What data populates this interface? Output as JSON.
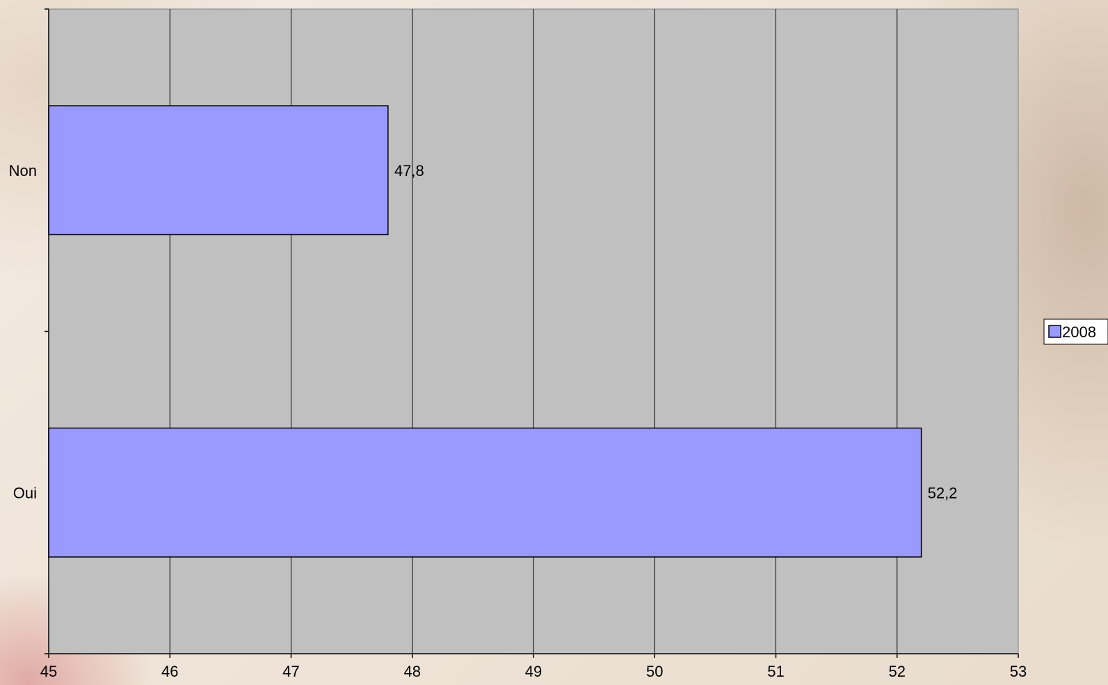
{
  "chart_data": {
    "type": "bar",
    "orientation": "horizontal",
    "categories": [
      "Non",
      "Oui"
    ],
    "series": [
      {
        "name": "2008",
        "values": [
          47.8,
          52.2
        ],
        "color": "#9999ff"
      }
    ],
    "data_labels": [
      "47,8",
      "52,2"
    ],
    "x_ticks": [
      45,
      46,
      47,
      48,
      49,
      50,
      51,
      52,
      53
    ],
    "xlim": [
      45,
      53
    ],
    "grid": true,
    "plot_background": "#c0c0c0",
    "legend_position": "right",
    "title": "",
    "xlabel": "",
    "ylabel": ""
  }
}
